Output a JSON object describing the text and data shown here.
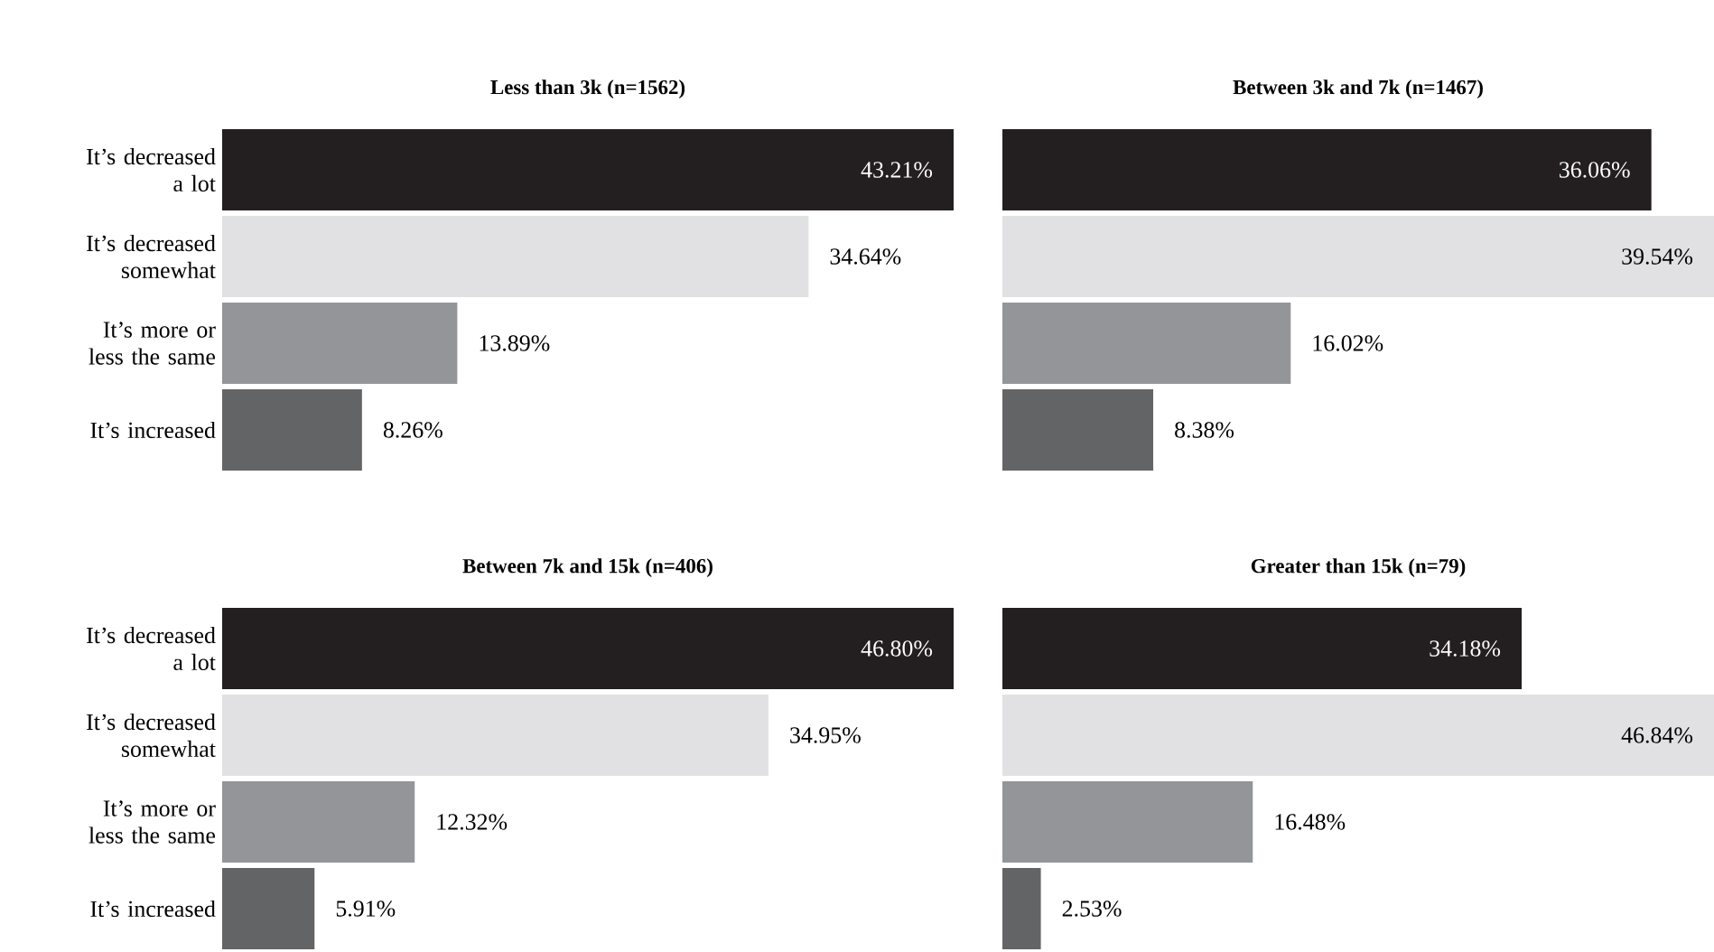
{
  "chart_data": [
    {
      "type": "bar",
      "orientation": "horizontal",
      "title": "Less than 3k (n=1562)",
      "categories": [
        "It’s decreased a lot",
        "It’s decreased somewhat",
        "It’s more or less the same",
        "It’s increased"
      ],
      "values": [
        43.21,
        34.64,
        13.89,
        8.26
      ],
      "value_labels": [
        "43.21%",
        "34.64%",
        "13.89%",
        "8.26%"
      ],
      "colors": [
        "#231f20",
        "#e1e1e3",
        "#939598",
        "#636466"
      ]
    },
    {
      "type": "bar",
      "orientation": "horizontal",
      "title": "Between 3k and 7k (n=1467)",
      "categories": [
        null,
        null,
        null,
        null
      ],
      "values": [
        36.06,
        39.54,
        16.02,
        8.38
      ],
      "value_labels": [
        "36.06%",
        "39.54%",
        "16.02%",
        "8.38%"
      ],
      "colors": [
        "#231f20",
        "#e1e1e3",
        "#939598",
        "#636466"
      ]
    },
    {
      "type": "bar",
      "orientation": "horizontal",
      "title": "Between 7k and 15k (n=406)",
      "categories": [
        "It’s decreased a lot",
        "It’s decreased somewhat",
        "It’s more or less the same",
        "It’s increased"
      ],
      "values": [
        46.8,
        34.95,
        12.32,
        5.91
      ],
      "value_labels": [
        "46.80%",
        "34.95%",
        "12.32%",
        "5.91%"
      ],
      "colors": [
        "#231f20",
        "#e1e1e3",
        "#939598",
        "#636466"
      ]
    },
    {
      "type": "bar",
      "orientation": "horizontal",
      "title": "Greater than 15k (n=79)",
      "categories": [
        null,
        null,
        null,
        null
      ],
      "values": [
        34.18,
        46.84,
        16.48,
        2.53
      ],
      "value_labels": [
        "34.18%",
        "46.84%",
        "16.48%",
        "2.53%"
      ],
      "colors": [
        "#231f20",
        "#e1e1e3",
        "#939598",
        "#636466"
      ]
    }
  ]
}
